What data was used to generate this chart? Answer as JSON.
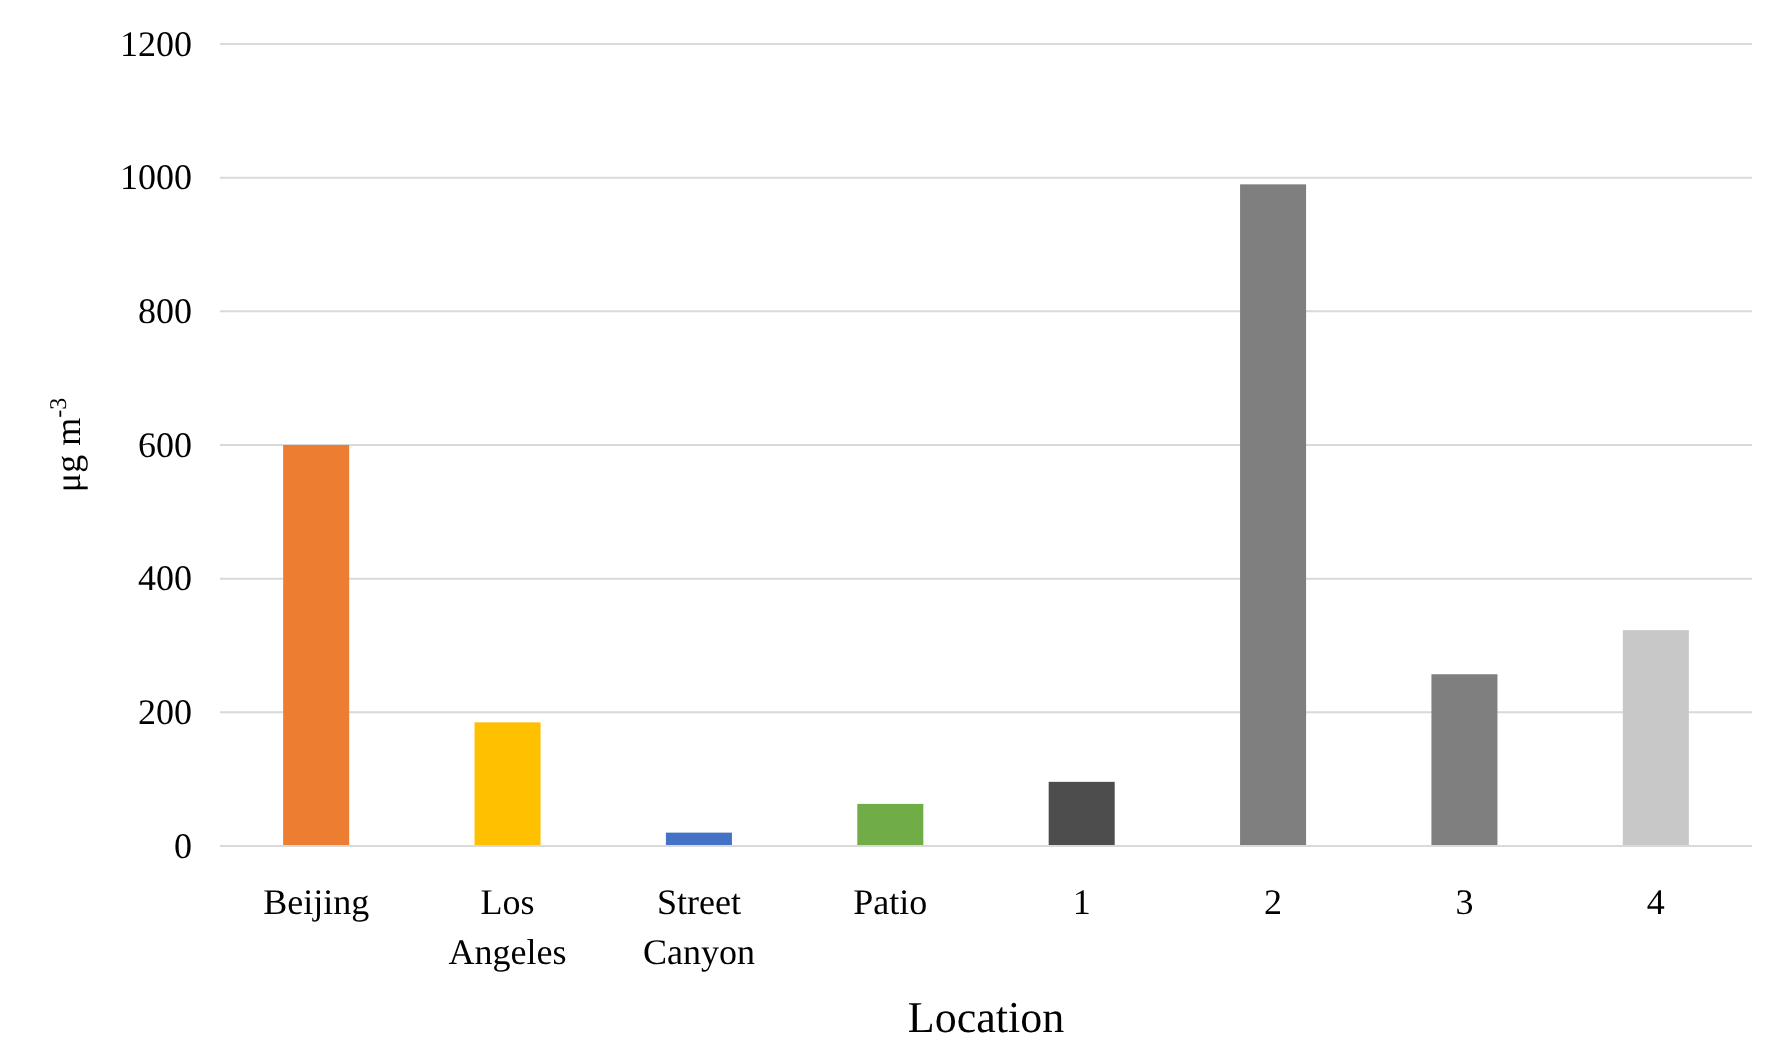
{
  "chart_data": {
    "type": "bar",
    "xlabel": "Location",
    "ylabel": "μg m$^{-3}$",
    "categories": [
      "Beijing",
      "Los Angeles",
      "Street Canyon",
      "Patio",
      "1",
      "2",
      "3",
      "4"
    ],
    "values": [
      600,
      185,
      20,
      63,
      96,
      990,
      257,
      323
    ],
    "colors": [
      "#ed7d31",
      "#ffc000",
      "#4472c4",
      "#70ad47",
      "#4d4d4d",
      "#7f7f7f",
      "#7f7f7f",
      "#c8c8c8"
    ],
    "ylim": [
      0,
      1200
    ],
    "yticks": [
      0,
      200,
      400,
      600,
      800,
      1000,
      1200
    ],
    "grid": "y"
  }
}
